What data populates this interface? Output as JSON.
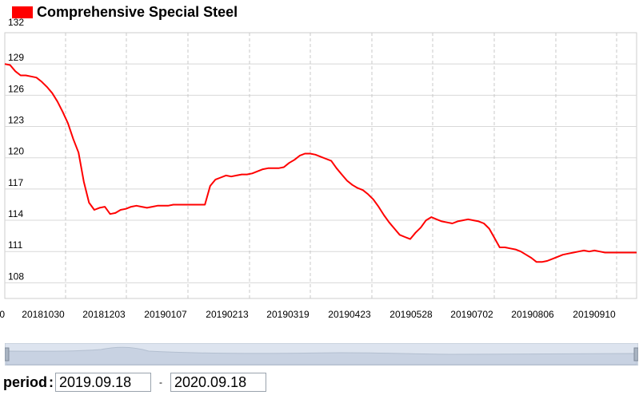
{
  "legend": {
    "label": "Comprehensive Special Steel",
    "color": "#ff0000"
  },
  "controls": {
    "period_label": "period",
    "colon": ":",
    "start_date": "2019.09.18",
    "end_date": "2020.09.18",
    "separator": "-"
  },
  "chart_data": {
    "type": "line",
    "title": "",
    "xlabel": "",
    "ylabel": "",
    "y_ticks": [
      "132",
      "129",
      "126",
      "123",
      "120",
      "117",
      "114",
      "111",
      "108"
    ],
    "ylim": [
      106.5,
      132
    ],
    "x_tick_labels": [
      "0",
      "20181030",
      "20181203",
      "20190107",
      "20190213",
      "20190319",
      "20190423",
      "20190528",
      "20190702",
      "20190806",
      "20190910"
    ],
    "grid": true,
    "legend_position": "top-left",
    "series": [
      {
        "name": "Comprehensive Special Steel",
        "color": "#ff0000",
        "x": [
          0,
          2,
          4,
          6,
          8,
          10,
          12,
          14,
          16,
          18,
          20,
          22,
          24,
          26,
          28,
          30,
          32,
          34,
          36,
          38,
          40,
          42,
          44,
          46,
          48,
          50,
          52,
          54,
          56,
          58,
          60,
          62,
          64,
          66,
          68,
          70,
          72,
          74,
          76,
          78,
          80,
          82,
          84,
          86,
          88,
          90,
          92,
          94,
          96,
          98,
          100,
          102,
          104,
          106,
          108,
          110,
          112,
          114,
          116,
          118,
          120,
          122,
          124,
          126,
          128,
          130,
          132,
          134,
          136,
          138,
          140,
          142,
          144,
          146,
          148,
          150,
          152,
          154,
          156,
          158,
          160,
          162,
          164,
          166,
          168,
          170,
          172,
          174,
          176,
          178,
          180,
          182,
          184,
          186,
          188,
          190,
          192,
          194,
          196,
          198,
          200,
          202,
          204,
          206,
          208,
          210,
          212,
          214,
          216,
          218,
          220,
          222,
          224,
          226,
          228,
          230,
          232,
          234,
          236,
          238,
          240
        ],
        "values": [
          129.0,
          128.9,
          128.3,
          127.9,
          127.9,
          127.8,
          127.7,
          127.3,
          126.8,
          126.2,
          125.4,
          124.4,
          123.3,
          121.8,
          120.5,
          117.7,
          115.7,
          115.0,
          115.2,
          115.3,
          114.6,
          114.7,
          115.0,
          115.1,
          115.3,
          115.4,
          115.3,
          115.2,
          115.3,
          115.4,
          115.4,
          115.4,
          115.5,
          115.5,
          115.5,
          115.5,
          115.5,
          115.5,
          115.5,
          117.3,
          117.9,
          118.1,
          118.3,
          118.2,
          118.3,
          118.4,
          118.4,
          118.5,
          118.7,
          118.9,
          119.0,
          119.0,
          119.0,
          119.1,
          119.5,
          119.8,
          120.2,
          120.4,
          120.4,
          120.3,
          120.1,
          119.9,
          119.7,
          119.0,
          118.4,
          117.8,
          117.4,
          117.1,
          116.9,
          116.5,
          116.0,
          115.3,
          114.5,
          113.8,
          113.2,
          112.6,
          112.4,
          112.2,
          112.8,
          113.3,
          114.0,
          114.3,
          114.1,
          113.9,
          113.8,
          113.7,
          113.9,
          114.0,
          114.1,
          114.0,
          113.9,
          113.7,
          113.2,
          112.3,
          111.4,
          111.4,
          111.3,
          111.2,
          111.0,
          110.7,
          110.4,
          110.0,
          110.0,
          110.1,
          110.3,
          110.5,
          110.7,
          110.8,
          110.9,
          111.0,
          111.1,
          111.0,
          111.1,
          111.0,
          110.9,
          110.9,
          110.9,
          110.9,
          110.9,
          110.9,
          110.9
        ]
      }
    ]
  }
}
